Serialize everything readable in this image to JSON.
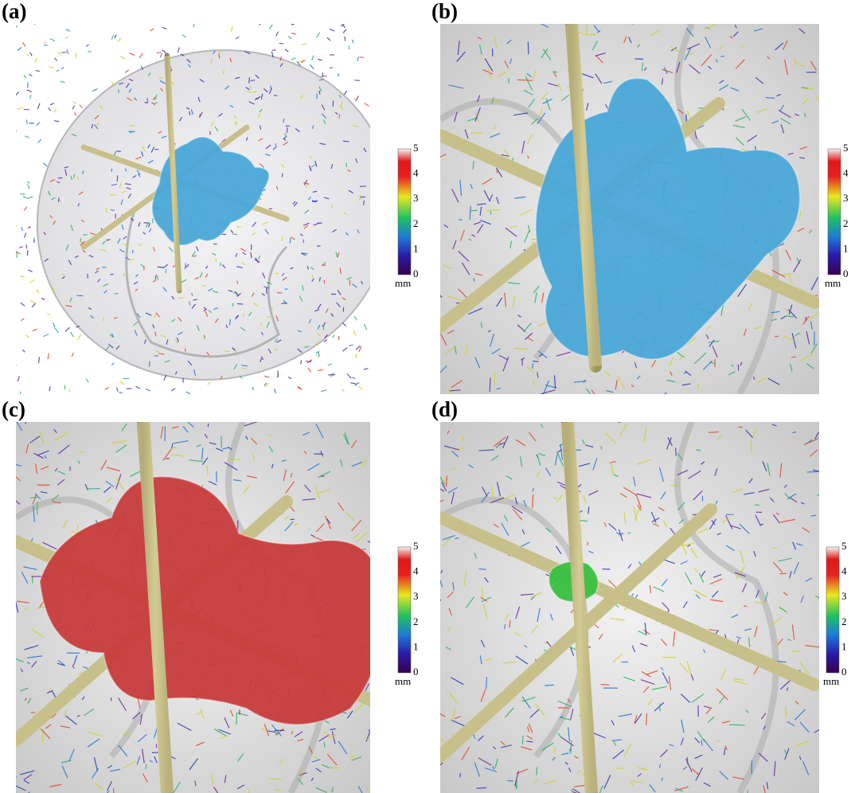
{
  "panels": [
    {
      "label": "(a)",
      "colorbar": {
        "ticks": [
          "0",
          "1",
          "2",
          "3",
          "4",
          "5"
        ],
        "unit": "mm"
      }
    },
    {
      "label": "(b)",
      "colorbar": {
        "ticks": [
          "0",
          "1",
          "2",
          "3",
          "4",
          "5"
        ],
        "unit": "mm"
      }
    },
    {
      "label": "(c)",
      "colorbar": {
        "ticks": [
          "0",
          "1",
          "2",
          "3",
          "4",
          "5"
        ],
        "unit": "mm"
      }
    },
    {
      "label": "(d)",
      "colorbar": {
        "ticks": [
          "0",
          "1",
          "2",
          "3",
          "4",
          "5"
        ],
        "unit": "mm"
      }
    }
  ]
}
